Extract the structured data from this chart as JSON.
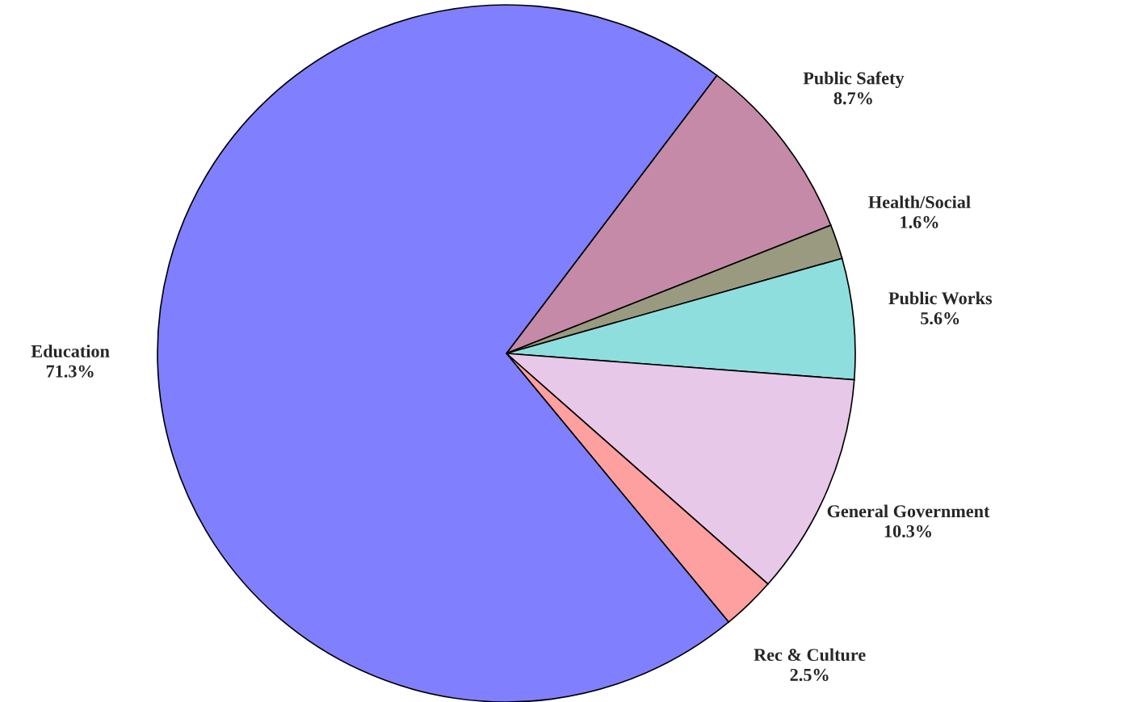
{
  "chart_data": {
    "type": "pie",
    "categories": [
      "Public Safety",
      "Health/Social",
      "Public Works",
      "General Government",
      "Rec & Culture",
      "Education"
    ],
    "values": [
      8.7,
      1.6,
      5.6,
      10.3,
      2.5,
      71.3
    ],
    "colors": [
      "#c48aa8",
      "#9a9a80",
      "#8fdede",
      "#e8c8e8",
      "#ffa0a0",
      "#8080ff"
    ],
    "value_labels": [
      "8.7%",
      "1.6%",
      "5.6%",
      "10.3%",
      "2.5%",
      "71.3%"
    ]
  }
}
